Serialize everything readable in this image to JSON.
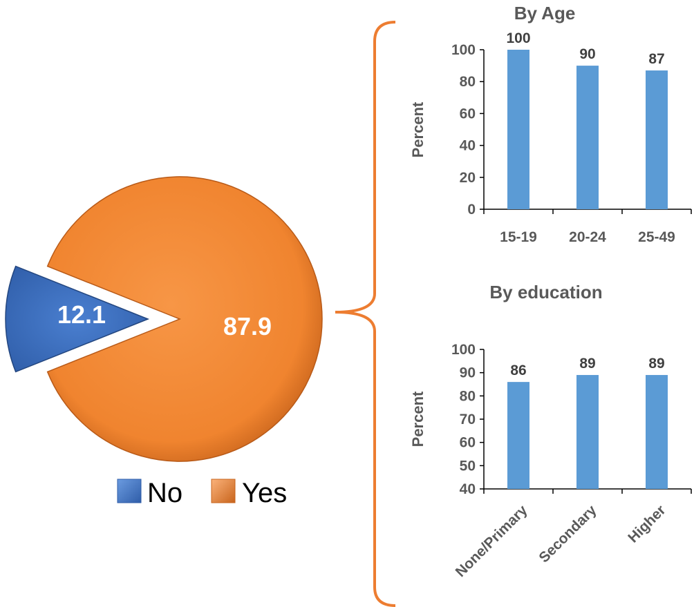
{
  "pie": {
    "chart_data": {
      "type": "pie",
      "slices": [
        {
          "label": "No",
          "value": 12.1
        },
        {
          "label": "Yes",
          "value": 87.9
        }
      ],
      "colors": {
        "No": "#4472C4",
        "Yes": "#ED7D31"
      }
    },
    "label_no": "12.1",
    "label_yes": "87.9",
    "legend_no": "No",
    "legend_yes": "Yes"
  },
  "chart_data": [
    {
      "type": "bar",
      "title": "By Age",
      "ylabel": "Percent",
      "categories": [
        "15-19",
        "20-24",
        "25-49"
      ],
      "values": [
        100,
        90,
        87
      ],
      "ylim": [
        0,
        100
      ],
      "yticks": [
        "0",
        "20",
        "40",
        "60",
        "80",
        "100"
      ],
      "data_labels": [
        "100",
        "90",
        "87"
      ],
      "bar_color": "#5B9BD5"
    },
    {
      "type": "bar",
      "title": "By education",
      "ylabel": "Percent",
      "categories": [
        "None/Primary",
        "Secondary",
        "Higher"
      ],
      "values": [
        86,
        89,
        89
      ],
      "ylim": [
        40,
        100
      ],
      "yticks": [
        "40",
        "50",
        "60",
        "70",
        "80",
        "90",
        "100"
      ],
      "data_labels": [
        "86",
        "89",
        "89"
      ],
      "bar_color": "#5B9BD5"
    }
  ],
  "colors": {
    "bracket": "#ED7D31"
  }
}
